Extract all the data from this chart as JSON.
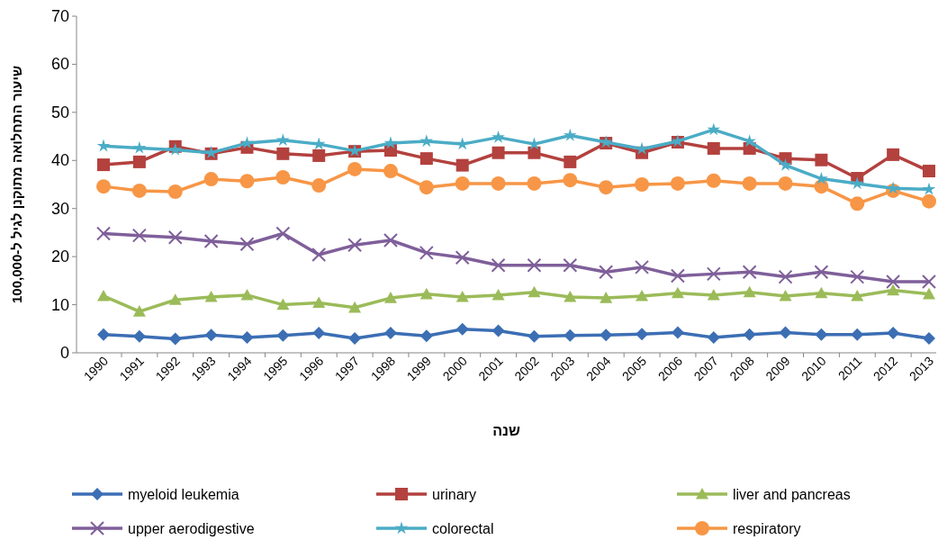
{
  "chart_data": {
    "type": "line",
    "xlabel": "שנה",
    "ylabel": "שיעור התחלואה מתוקנן לגיל ל-100,000",
    "categories": [
      "1990",
      "1991",
      "1992",
      "1993",
      "1994",
      "1995",
      "1996",
      "1997",
      "1998",
      "1999",
      "2000",
      "2001",
      "2002",
      "2003",
      "2004",
      "2005",
      "2006",
      "2007",
      "2008",
      "2009",
      "2010",
      "2011",
      "2012",
      "2013"
    ],
    "ylim": [
      0,
      70
    ],
    "yticks": [
      0,
      10,
      20,
      30,
      40,
      50,
      60,
      70
    ],
    "grid": false,
    "legend": "bottom",
    "line_style": "solid",
    "series": [
      {
        "name": "myeloid leukemia",
        "color": "#3c6eb4",
        "marker": "diamond",
        "values": [
          3.8,
          3.4,
          2.9,
          3.7,
          3.2,
          3.6,
          4.1,
          3.0,
          4.1,
          3.5,
          4.9,
          4.6,
          3.4,
          3.6,
          3.7,
          3.9,
          4.2,
          3.2,
          3.8,
          4.2,
          3.8,
          3.8,
          4.1,
          3.0
        ]
      },
      {
        "name": "urinary",
        "color": "#b3413e",
        "marker": "square",
        "values": [
          39.1,
          39.7,
          42.9,
          41.4,
          42.7,
          41.4,
          41.0,
          41.9,
          42.1,
          40.4,
          39.0,
          41.6,
          41.6,
          39.7,
          43.6,
          41.6,
          43.8,
          42.5,
          42.5,
          40.4,
          40.1,
          36.3,
          41.2,
          37.8
        ]
      },
      {
        "name": "liver and pancreas",
        "color": "#9bbb59",
        "marker": "triangle",
        "values": [
          11.8,
          8.6,
          11.0,
          11.6,
          12.0,
          10.0,
          10.4,
          9.4,
          11.4,
          12.2,
          11.6,
          12.0,
          12.6,
          11.6,
          11.4,
          11.8,
          12.4,
          12.0,
          12.6,
          11.8,
          12.4,
          11.8,
          13.0,
          12.2
        ]
      },
      {
        "name": "upper aerodigestive",
        "color": "#7f5f9a",
        "marker": "cross",
        "values": [
          24.8,
          24.4,
          24.0,
          23.2,
          22.6,
          24.8,
          20.4,
          22.4,
          23.4,
          20.8,
          19.8,
          18.2,
          18.2,
          18.2,
          16.8,
          17.8,
          16.0,
          16.4,
          16.8,
          15.8,
          16.8,
          15.8,
          14.8,
          14.8
        ]
      },
      {
        "name": "colorectal",
        "color": "#4bacc6",
        "marker": "star",
        "values": [
          43.0,
          42.6,
          42.2,
          41.6,
          43.6,
          44.2,
          43.4,
          42.0,
          43.6,
          44.0,
          43.4,
          44.8,
          43.4,
          45.2,
          43.8,
          42.4,
          44.0,
          46.4,
          44.0,
          39.0,
          36.2,
          35.2,
          34.2,
          34.0
        ]
      },
      {
        "name": "respiratory",
        "color": "#f79646",
        "marker": "circle",
        "values": [
          34.6,
          33.7,
          33.5,
          36.1,
          35.7,
          36.5,
          34.8,
          38.2,
          37.8,
          34.4,
          35.2,
          35.2,
          35.2,
          35.9,
          34.4,
          35.0,
          35.2,
          35.8,
          35.2,
          35.2,
          34.6,
          31.0,
          33.7,
          31.5
        ]
      }
    ]
  }
}
